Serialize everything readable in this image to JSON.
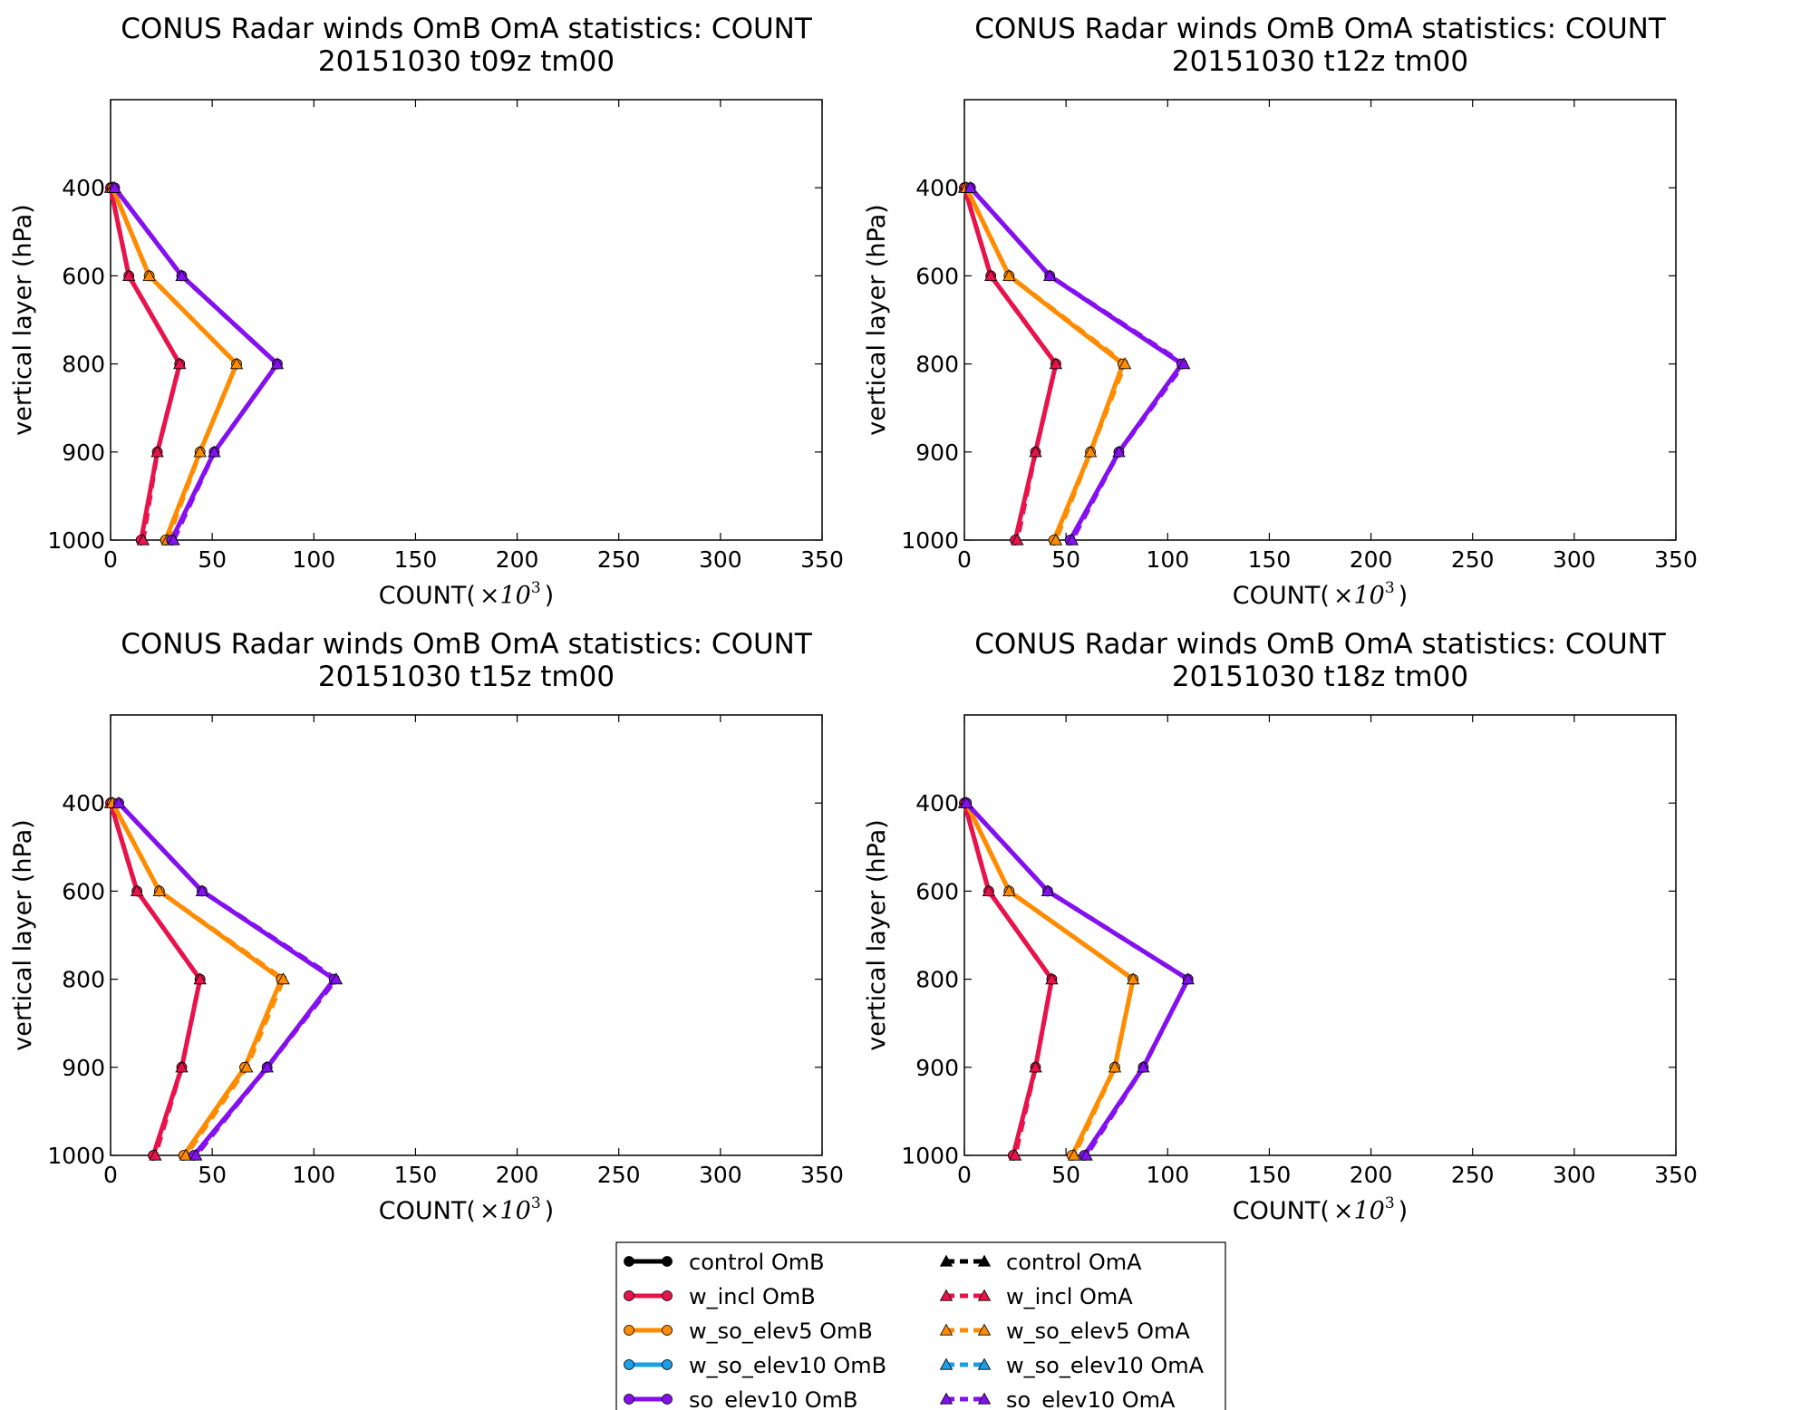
{
  "chart_data": [
    {
      "type": "line",
      "title": "CONUS Radar winds OmB OmA statistics: COUNT",
      "subtitle": "20151030 t09z tm00",
      "xlabel": "COUNT(",
      "xlabel_math": "×10",
      "xlabel_exp": "3",
      "xlabel_close": ")",
      "ylabel": "vertical layer (hPa)",
      "xlim": [
        0,
        350
      ],
      "ylim": [
        1000,
        250
      ],
      "xticks": [
        "0",
        "50",
        "100",
        "150",
        "200",
        "250",
        "300",
        "350"
      ],
      "yticks": [
        "400",
        "600",
        "800",
        "900",
        "1000"
      ],
      "y": [
        400,
        600,
        800,
        900,
        1000
      ],
      "series": [
        {
          "name": "w_incl OmB",
          "values": [
            0,
            9,
            34,
            23,
            15
          ]
        },
        {
          "name": "w_incl OmA",
          "values": [
            0,
            9,
            34,
            23,
            16
          ]
        },
        {
          "name": "w_so_elev5 OmB",
          "values": [
            1,
            19,
            62,
            44,
            27
          ]
        },
        {
          "name": "w_so_elev5 OmA",
          "values": [
            1,
            19,
            62,
            44,
            28
          ]
        },
        {
          "name": "so_elev10 OmB",
          "values": [
            2,
            35,
            82,
            51,
            30
          ]
        },
        {
          "name": "so_elev10 OmA",
          "values": [
            2,
            35,
            82,
            51,
            31
          ]
        }
      ]
    },
    {
      "type": "line",
      "title": "CONUS Radar winds OmB OmA statistics: COUNT",
      "subtitle": "20151030 t12z tm00",
      "xlabel": "COUNT(",
      "xlabel_math": "×10",
      "xlabel_exp": "3",
      "xlabel_close": ")",
      "ylabel": "vertical layer (hPa)",
      "xlim": [
        0,
        350
      ],
      "ylim": [
        1000,
        250
      ],
      "xticks": [
        "0",
        "50",
        "100",
        "150",
        "200",
        "250",
        "300",
        "350"
      ],
      "yticks": [
        "400",
        "600",
        "800",
        "900",
        "1000"
      ],
      "y": [
        400,
        600,
        800,
        900,
        1000
      ],
      "series": [
        {
          "name": "w_incl OmB",
          "values": [
            0,
            13,
            45,
            35,
            25
          ]
        },
        {
          "name": "w_incl OmA",
          "values": [
            0,
            13,
            45,
            35,
            26
          ]
        },
        {
          "name": "w_so_elev5 OmB",
          "values": [
            1,
            22,
            78,
            62,
            44
          ]
        },
        {
          "name": "w_so_elev5 OmA",
          "values": [
            1,
            22,
            79,
            62,
            45
          ]
        },
        {
          "name": "so_elev10 OmB",
          "values": [
            3,
            42,
            107,
            76,
            52
          ]
        },
        {
          "name": "so_elev10 OmA",
          "values": [
            3,
            42,
            108,
            76,
            53
          ]
        }
      ]
    },
    {
      "type": "line",
      "title": "CONUS Radar winds OmB OmA statistics: COUNT",
      "subtitle": "20151030 t15z tm00",
      "xlabel": "COUNT(",
      "xlabel_math": "×10",
      "xlabel_exp": "3",
      "xlabel_close": ")",
      "ylabel": "vertical layer (hPa)",
      "xlim": [
        0,
        350
      ],
      "ylim": [
        1000,
        250
      ],
      "xticks": [
        "0",
        "50",
        "100",
        "150",
        "200",
        "250",
        "300",
        "350"
      ],
      "yticks": [
        "400",
        "600",
        "800",
        "900",
        "1000"
      ],
      "y": [
        400,
        600,
        800,
        900,
        1000
      ],
      "series": [
        {
          "name": "w_incl OmB",
          "values": [
            0,
            13,
            44,
            35,
            21
          ]
        },
        {
          "name": "w_incl OmA",
          "values": [
            0,
            13,
            44,
            35,
            22
          ]
        },
        {
          "name": "w_so_elev5 OmB",
          "values": [
            1,
            24,
            84,
            66,
            36
          ]
        },
        {
          "name": "w_so_elev5 OmA",
          "values": [
            1,
            24,
            85,
            67,
            37
          ]
        },
        {
          "name": "so_elev10 OmB",
          "values": [
            4,
            45,
            110,
            77,
            41
          ]
        },
        {
          "name": "so_elev10 OmA",
          "values": [
            4,
            45,
            111,
            77,
            42
          ]
        }
      ]
    },
    {
      "type": "line",
      "title": "CONUS Radar winds OmB OmA statistics: COUNT",
      "subtitle": "20151030 t18z tm00",
      "xlabel": "COUNT(",
      "xlabel_math": "×10",
      "xlabel_exp": "3",
      "xlabel_close": ")",
      "ylabel": "vertical layer (hPa)",
      "xlim": [
        0,
        350
      ],
      "ylim": [
        1000,
        250
      ],
      "xticks": [
        "0",
        "50",
        "100",
        "150",
        "200",
        "250",
        "300",
        "350"
      ],
      "yticks": [
        "400",
        "600",
        "800",
        "900",
        "1000"
      ],
      "y": [
        400,
        600,
        800,
        900,
        1000
      ],
      "series": [
        {
          "name": "w_incl OmB",
          "values": [
            0,
            12,
            43,
            35,
            24
          ]
        },
        {
          "name": "w_incl OmA",
          "values": [
            0,
            12,
            43,
            35,
            25
          ]
        },
        {
          "name": "w_so_elev5 OmB",
          "values": [
            1,
            22,
            83,
            74,
            53
          ]
        },
        {
          "name": "w_so_elev5 OmA",
          "values": [
            1,
            22,
            83,
            74,
            54
          ]
        },
        {
          "name": "so_elev10 OmB",
          "values": [
            1,
            41,
            110,
            88,
            59
          ]
        },
        {
          "name": "so_elev10 OmA",
          "values": [
            1,
            41,
            110,
            88,
            60
          ]
        }
      ]
    }
  ],
  "legend": {
    "placement": "bottom-center",
    "items": [
      {
        "label": "control OmB",
        "color": "#000000",
        "style": "solid",
        "marker": "circle"
      },
      {
        "label": "w_incl OmB",
        "color": "#e8134a",
        "style": "solid",
        "marker": "circle"
      },
      {
        "label": "w_so_elev5 OmB",
        "color": "#ff8c00",
        "style": "solid",
        "marker": "circle"
      },
      {
        "label": "w_so_elev10 OmB",
        "color": "#1b9fe8",
        "style": "solid",
        "marker": "circle"
      },
      {
        "label": "so_elev10 OmB",
        "color": "#8410f0",
        "style": "solid",
        "marker": "circle"
      },
      {
        "label": "control OmA",
        "color": "#000000",
        "style": "dashed",
        "marker": "triangle"
      },
      {
        "label": "w_incl OmA",
        "color": "#e8134a",
        "style": "dashed",
        "marker": "triangle"
      },
      {
        "label": "w_so_elev5 OmA",
        "color": "#ff8c00",
        "style": "dashed",
        "marker": "triangle"
      },
      {
        "label": "w_so_elev10 OmA",
        "color": "#1b9fe8",
        "style": "dashed",
        "marker": "triangle"
      },
      {
        "label": "so_elev10 OmA",
        "color": "#8410f0",
        "style": "dashed",
        "marker": "triangle"
      }
    ]
  },
  "colors": {
    "w_incl": "#e8134a",
    "w_so_elev5": "#ff8c00",
    "so_elev10": "#8410f0"
  }
}
